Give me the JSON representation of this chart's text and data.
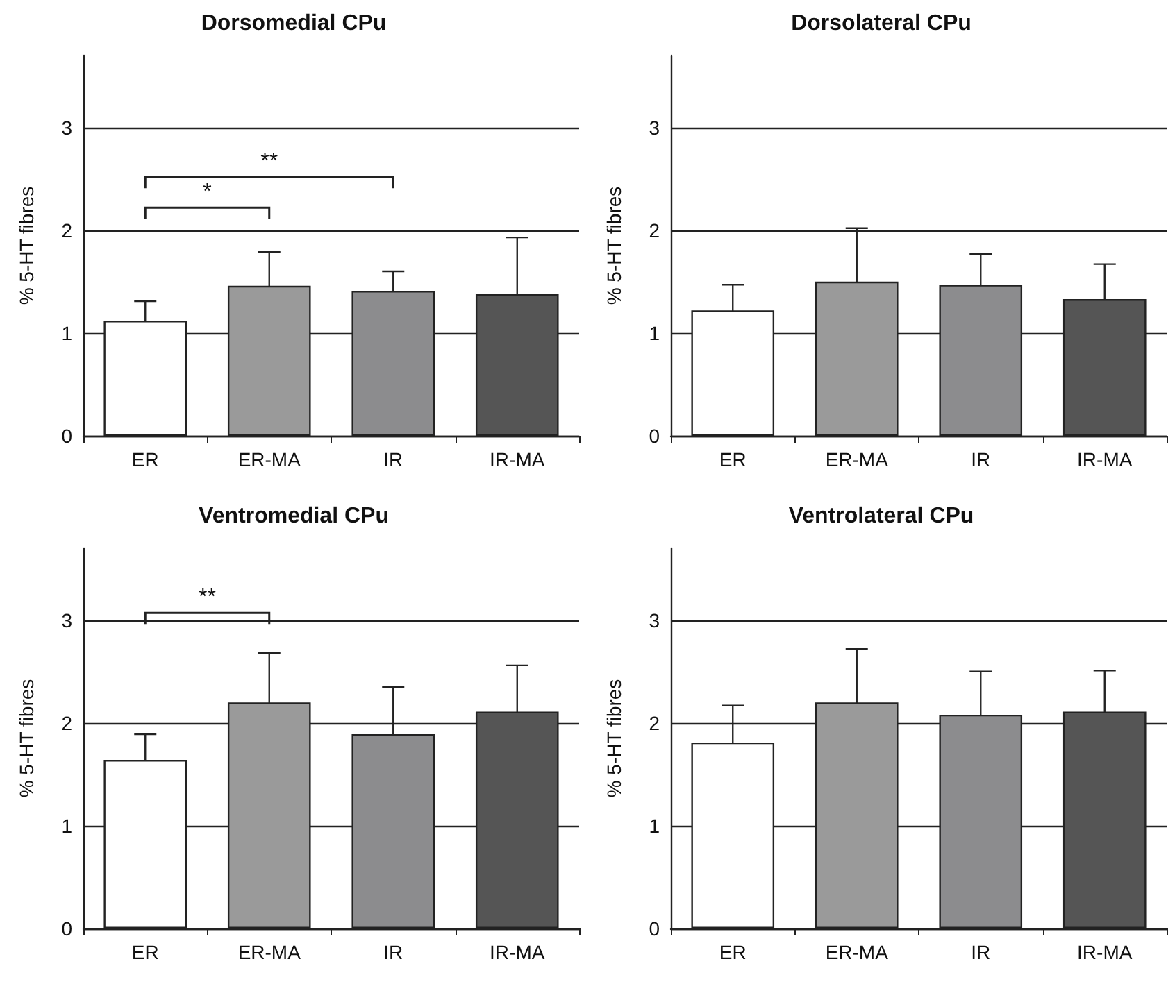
{
  "chart_data": [
    {
      "type": "bar",
      "title": "Dorsomedial CPu",
      "ylabel": "% 5-HT fibres",
      "categories": [
        "ER",
        "ER-MA",
        "IR",
        "IR-MA"
      ],
      "values": [
        1.12,
        1.46,
        1.41,
        1.38
      ],
      "errors": [
        0.19,
        0.33,
        0.19,
        0.55
      ],
      "colors": [
        "#ffffff",
        "#9a9a9a",
        "#8c8c8e",
        "#555555"
      ],
      "ylim": [
        0,
        3.7
      ],
      "yticks": [
        0,
        1,
        2,
        3
      ],
      "grid": "y",
      "annotations": [
        "*",
        "**"
      ]
    },
    {
      "type": "bar",
      "title": "Dorsolateral CPu",
      "ylabel": "% 5-HT fibres",
      "categories": [
        "ER",
        "ER-MA",
        "IR",
        "IR-MA"
      ],
      "values": [
        1.22,
        1.5,
        1.47,
        1.33
      ],
      "errors": [
        0.25,
        0.52,
        0.3,
        0.34
      ],
      "colors": [
        "#ffffff",
        "#9a9a9a",
        "#8c8c8e",
        "#555555"
      ],
      "ylim": [
        0,
        3.7
      ],
      "yticks": [
        0,
        1,
        2,
        3
      ],
      "grid": "y"
    },
    {
      "type": "bar",
      "title": "Ventromedial CPu",
      "ylabel": "% 5-HT fibres",
      "categories": [
        "ER",
        "ER-MA",
        "IR",
        "IR-MA"
      ],
      "values": [
        1.64,
        2.2,
        1.89,
        2.11
      ],
      "errors": [
        0.25,
        0.48,
        0.46,
        0.45
      ],
      "colors": [
        "#ffffff",
        "#9a9a9a",
        "#8c8c8e",
        "#555555"
      ],
      "ylim": [
        0,
        3.7
      ],
      "yticks": [
        0,
        1,
        2,
        3
      ],
      "grid": "y",
      "annotations": [
        "**"
      ]
    },
    {
      "type": "bar",
      "title": "Ventrolateral CPu",
      "ylabel": "% 5-HT fibres",
      "categories": [
        "ER",
        "ER-MA",
        "IR",
        "IR-MA"
      ],
      "values": [
        1.81,
        2.2,
        2.08,
        2.11
      ],
      "errors": [
        0.36,
        0.52,
        0.42,
        0.4
      ],
      "colors": [
        "#ffffff",
        "#9a9a9a",
        "#8c8c8e",
        "#555555"
      ],
      "ylim": [
        0,
        3.7
      ],
      "yticks": [
        0,
        1,
        2,
        3
      ],
      "grid": "y"
    }
  ]
}
